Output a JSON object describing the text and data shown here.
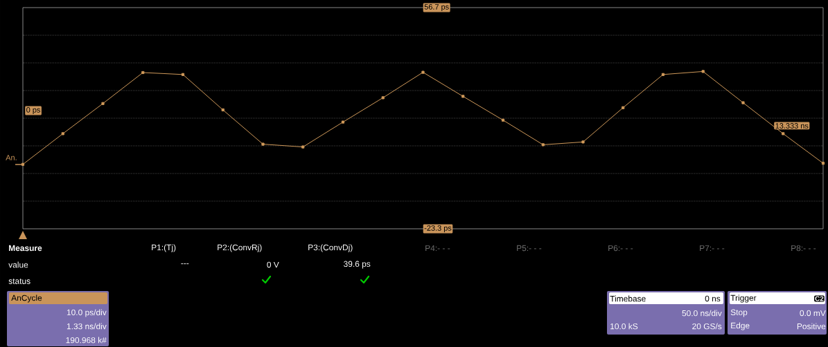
{
  "chart_data": {
    "type": "line",
    "categories": [
      null,
      null,
      null,
      null,
      null,
      null,
      null,
      null,
      null,
      null,
      null,
      null,
      null,
      null,
      null,
      null,
      null,
      null,
      null,
      null,
      null
    ],
    "series": [
      {
        "color": "#d09a5a",
        "values": [
          0.0,
          11.1,
          22.0,
          33.2,
          32.5,
          19.7,
          7.3,
          6.3,
          15.3,
          24.1,
          33.3,
          24.6,
          16.0,
          7.1,
          8.1,
          20.5,
          32.5,
          33.6,
          22.3,
          11.1,
          0.4
        ]
      }
    ],
    "ylim": [
      -23.3,
      56.7
    ],
    "yticks": [
      {
        "value": -23.3,
        "label": "-23.3 ps"
      },
      {
        "value": 56.7,
        "label": "56.7 ps"
      }
    ],
    "grid": true,
    "marker": "square",
    "line_style": "solid",
    "annotations": [
      "0 ps",
      "An.",
      "13.333 ns",
      "Measure",
      "P1:(Tj)",
      "P2:(ConvRj)",
      "P3:(ConvDj)",
      "P4:- - -",
      "P5:- - -",
      "P6:- - -",
      "P7:- - -",
      "P8:- - -",
      "value",
      "---",
      "0 V",
      "39.6 ps",
      "status",
      "AnCycle",
      "10.0 ps/div",
      "1.33 ns/div",
      "190.968 k#",
      "Timebase",
      "0 ns",
      "50.0 ns/div",
      "10.0 kS",
      "20 GS/s",
      "Trigger",
      "C2",
      "Stop",
      "0.0 mV",
      "Edge",
      "Positive"
    ]
  }
}
